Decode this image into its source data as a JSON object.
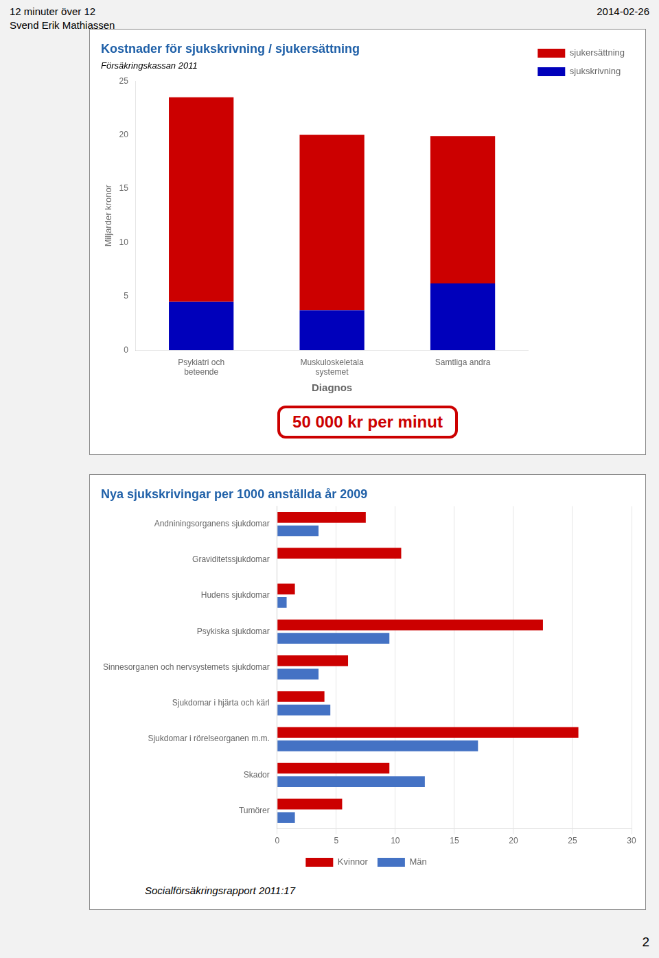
{
  "annotations": [
    "12 minuter över 12",
    "Svend Erik Mathiassen",
    "2014-02-26",
    "2"
  ],
  "chart_data": [
    {
      "type": "bar",
      "stacked": true,
      "title": "Kostnader för sjukskrivning / sjukersättning",
      "subtitle": "Försäkringskassan 2011",
      "xlabel": "Diagnos",
      "ylabel": "Miljarder kronor",
      "categories": [
        "Psykiatri och\nbeteende",
        "Muskuloskeletala\nsystemet",
        "Samtliga andra"
      ],
      "series": [
        {
          "name": "sjukskrivning",
          "color": "#0000bb",
          "values": [
            4.5,
            3.7,
            6.2
          ]
        },
        {
          "name": "sjukersättning",
          "color": "#cc0000",
          "values": [
            19.0,
            16.3,
            13.7
          ]
        }
      ],
      "ylim": [
        0,
        25
      ],
      "yticks": [
        0,
        5,
        10,
        15,
        20,
        25
      ],
      "grid": false,
      "legend": "upper right",
      "annotations": [
        "50 000 kr per minut"
      ]
    },
    {
      "type": "bar",
      "orientation": "horizontal",
      "title": "Nya sjukskrivingar per 1000 anställda år 2009",
      "categories": [
        "Andniningsorganens sjukdomar",
        "Graviditetssjukdomar",
        "Hudens sjukdomar",
        "Psykiska sjukdomar",
        "Sinnesorganen och nervsystemets sjukdomar",
        "Sjukdomar i hjärta och kärl",
        "Sjukdomar i rörelseorganen m.m.",
        "Skador",
        "Tumörer"
      ],
      "series": [
        {
          "name": "Kvinnor",
          "color": "#cc0000",
          "values": [
            7.5,
            10.5,
            1.5,
            22.5,
            6.0,
            4.0,
            25.5,
            9.5,
            5.5
          ]
        },
        {
          "name": "Män",
          "color": "#4472c4",
          "values": [
            3.5,
            0.0,
            0.8,
            9.5,
            3.5,
            4.5,
            17.0,
            12.5,
            1.5
          ]
        }
      ],
      "xlim": [
        0,
        30
      ],
      "xticks": [
        0,
        5,
        10,
        15,
        20,
        25,
        30
      ],
      "grid": true,
      "legend": "lower center",
      "annotations": [
        "Socialförsäkringsrapport 2011:17"
      ]
    }
  ]
}
